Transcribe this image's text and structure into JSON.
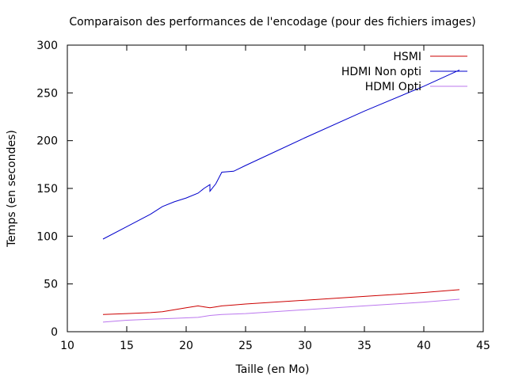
{
  "chart_data": {
    "type": "line",
    "title": "Comparaison des performances de l'encodage (pour des fichiers images)",
    "xlabel": "Taille (en Mo)",
    "ylabel": "Temps (en secondes)",
    "xlim": [
      10,
      45
    ],
    "ylim": [
      0,
      300
    ],
    "x_ticks": [
      10,
      15,
      20,
      25,
      30,
      35,
      40,
      45
    ],
    "y_ticks": [
      0,
      50,
      100,
      150,
      200,
      250,
      300
    ],
    "grid": false,
    "legend_position": "top-right",
    "series": [
      {
        "name": "HSMI",
        "color": "#cc0000",
        "points": [
          [
            13,
            18
          ],
          [
            15,
            19
          ],
          [
            17,
            20
          ],
          [
            18,
            21
          ],
          [
            19,
            23
          ],
          [
            20,
            25
          ],
          [
            21,
            27
          ],
          [
            21.5,
            26
          ],
          [
            22,
            25
          ],
          [
            22.5,
            26
          ],
          [
            23,
            27
          ],
          [
            24,
            28
          ],
          [
            25,
            29
          ],
          [
            30,
            33
          ],
          [
            35,
            37
          ],
          [
            40,
            41
          ],
          [
            43,
            44
          ]
        ]
      },
      {
        "name": "HDMI Non opti",
        "color": "#0000cc",
        "points": [
          [
            13,
            97
          ],
          [
            15,
            110
          ],
          [
            17,
            123
          ],
          [
            18,
            131
          ],
          [
            19,
            136
          ],
          [
            20,
            140
          ],
          [
            21,
            145
          ],
          [
            21.5,
            150
          ],
          [
            22,
            154
          ],
          [
            22,
            147
          ],
          [
            22.5,
            155
          ],
          [
            23,
            167
          ],
          [
            24,
            168
          ],
          [
            25,
            174
          ],
          [
            30,
            203
          ],
          [
            35,
            231
          ],
          [
            40,
            257
          ],
          [
            43,
            274
          ]
        ]
      },
      {
        "name": "HDMI Opti",
        "color": "#bb77ee",
        "points": [
          [
            13,
            10
          ],
          [
            15,
            12
          ],
          [
            17,
            13
          ],
          [
            19,
            14
          ],
          [
            21,
            15
          ],
          [
            22,
            17
          ],
          [
            23,
            18
          ],
          [
            25,
            19
          ],
          [
            30,
            23
          ],
          [
            35,
            27
          ],
          [
            40,
            31
          ],
          [
            43,
            34
          ]
        ]
      }
    ]
  }
}
